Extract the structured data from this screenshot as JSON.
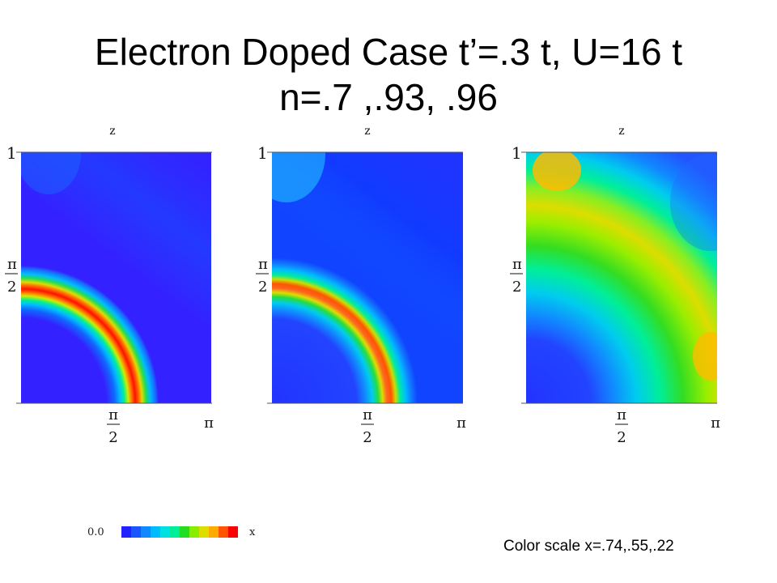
{
  "title": {
    "line1": "Electron Doped Case t’=.3 t, U=16 t",
    "line2": "n=.7 ,.93, .96"
  },
  "panels": [
    {
      "ytick_top": "1",
      "ytick_mid_num": "π",
      "ytick_mid_den": "2",
      "xtick_mid_num": "π",
      "xtick_mid_den": "2",
      "xtick_end": "π",
      "top_label": "z"
    },
    {
      "ytick_top": "1",
      "ytick_mid_num": "π",
      "ytick_mid_den": "2",
      "xtick_mid_num": "π",
      "xtick_mid_den": "2",
      "xtick_end": "π",
      "top_label": "z"
    },
    {
      "ytick_top": "1",
      "ytick_mid_num": "π",
      "ytick_mid_den": "2",
      "xtick_mid_num": "π",
      "xtick_mid_den": "2",
      "xtick_end": "π",
      "top_label": "z"
    }
  ],
  "colorbar": {
    "min_label": "0.0",
    "max_label": "x",
    "colors": [
      "#2222ff",
      "#1a55ff",
      "#1188ff",
      "#00bbff",
      "#00e0e0",
      "#00ee99",
      "#22dd22",
      "#88ee00",
      "#dddd00",
      "#ffaa00",
      "#ff5500",
      "#ff0000"
    ]
  },
  "note": "Color scale x=.74,.55,.22",
  "chart_data": [
    {
      "type": "heatmap",
      "panel": 1,
      "n": 0.7,
      "x_scale_max": 0.74,
      "colormap": "blue-to-red",
      "feature": "sharp ring (Fermi surface) peaked at red"
    },
    {
      "type": "heatmap",
      "panel": 2,
      "n": 0.93,
      "x_scale_max": 0.55,
      "colormap": "blue-to-red",
      "feature": "ring peaked at red-orange"
    },
    {
      "type": "heatmap",
      "panel": 3,
      "n": 0.96,
      "x_scale_max": 0.22,
      "colormap": "blue-to-red",
      "feature": "broad diagonal yellow/green band"
    }
  ]
}
